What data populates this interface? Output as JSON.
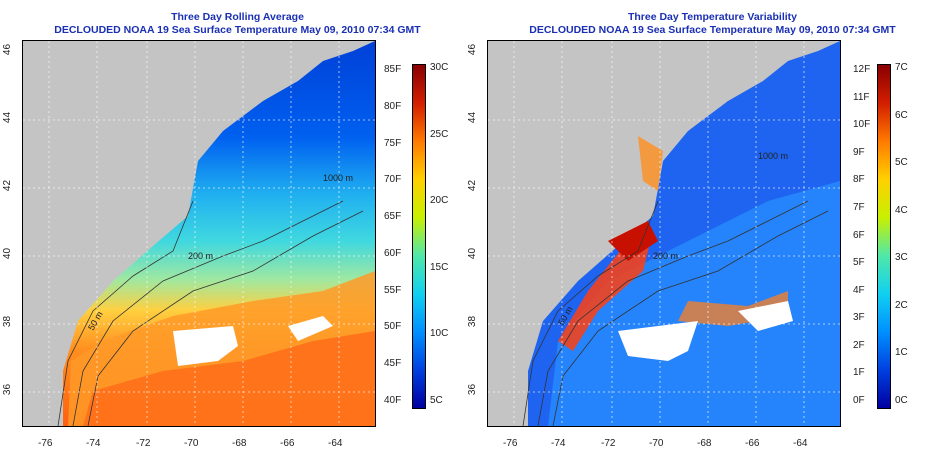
{
  "left": {
    "title1": "Three Day Rolling Average",
    "title2": "DECLOUDED NOAA 19 Sea Surface Temperature May 09, 2010 07:34 GMT",
    "contours": [
      "1000 m",
      "200 m",
      "50 m"
    ],
    "colorbar": {
      "f_labels": [
        "85F",
        "80F",
        "75F",
        "70F",
        "65F",
        "60F",
        "55F",
        "50F",
        "45F",
        "40F"
      ],
      "c_labels": [
        "30C",
        "25C",
        "20C",
        "15C",
        "10C",
        "5C"
      ],
      "colors": [
        "#8a0000",
        "#d21e00",
        "#ff7a00",
        "#ffd000",
        "#c8f000",
        "#50e8a8",
        "#10d0f0",
        "#0090ff",
        "#0040e0",
        "#0000a0"
      ]
    }
  },
  "right": {
    "title1": "Three Day Temperature Variability",
    "title2": "DECLOUDED NOAA 19 Sea Surface Temperature May 09, 2010 07:34 GMT",
    "contours": [
      "1000 m",
      "200 m",
      "50 m"
    ],
    "colorbar": {
      "f_labels": [
        "12F",
        "11F",
        "10F",
        "9F",
        "8F",
        "7F",
        "6F",
        "5F",
        "4F",
        "3F",
        "2F",
        "1F",
        "0F"
      ],
      "c_labels": [
        "7C",
        "6C",
        "5C",
        "4C",
        "3C",
        "2C",
        "1C",
        "0C"
      ],
      "colors": [
        "#8a0000",
        "#d21e00",
        "#ff7a00",
        "#ffd000",
        "#c8f000",
        "#50e8a8",
        "#10d0f0",
        "#0090ff",
        "#0040e0",
        "#0000a0"
      ]
    }
  },
  "axes": {
    "lon_labels": [
      "-76",
      "-74",
      "-72",
      "-70",
      "-68",
      "-66",
      "-64"
    ],
    "lat_labels": [
      "46",
      "44",
      "42",
      "40",
      "38",
      "36"
    ]
  },
  "colors": {
    "land": "#c4c4c4",
    "title": "#1a2fb3"
  }
}
